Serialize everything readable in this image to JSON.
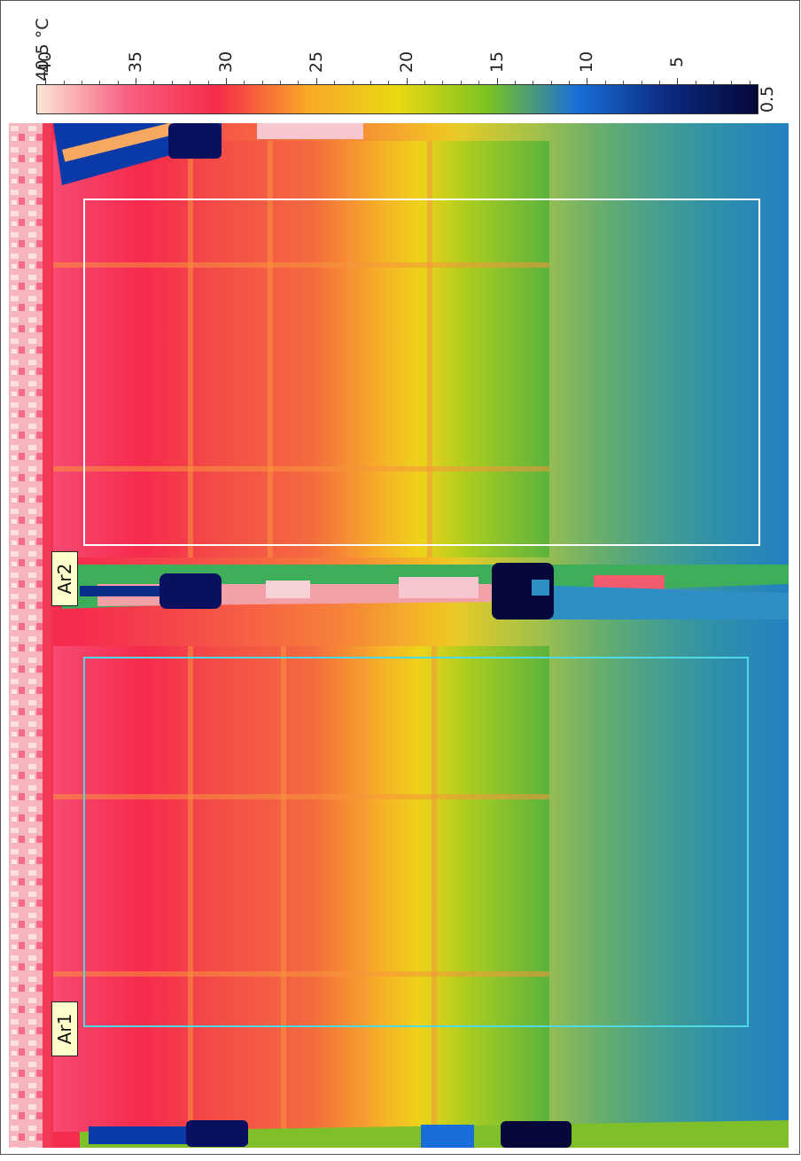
{
  "scale": {
    "unit_label": "40.5 °C",
    "max_value": 40.5,
    "min_value": 0.5,
    "min_label": "0.5",
    "tick_labels": [
      "40",
      "35",
      "30",
      "25",
      "20",
      "15",
      "10",
      "5"
    ],
    "palette": [
      "#fbe6d6",
      "#f86082",
      "#f62b4a",
      "#f9a828",
      "#e9d912",
      "#7bc420",
      "#1a6ed8",
      "#0b2a80",
      "#050838"
    ]
  },
  "thermal_image": {
    "description_colors": {
      "hot": "#f52a4d",
      "warm": "#f57a3a",
      "medium": "#f2d11c",
      "cool": "#7ebf2a",
      "cold": "#2d8fc4",
      "coldest": "#0a1060"
    }
  },
  "rois": [
    {
      "label": "Ar1",
      "color": "#4dd9e6"
    },
    {
      "label": "Ar2",
      "color": "#ffffff"
    }
  ]
}
